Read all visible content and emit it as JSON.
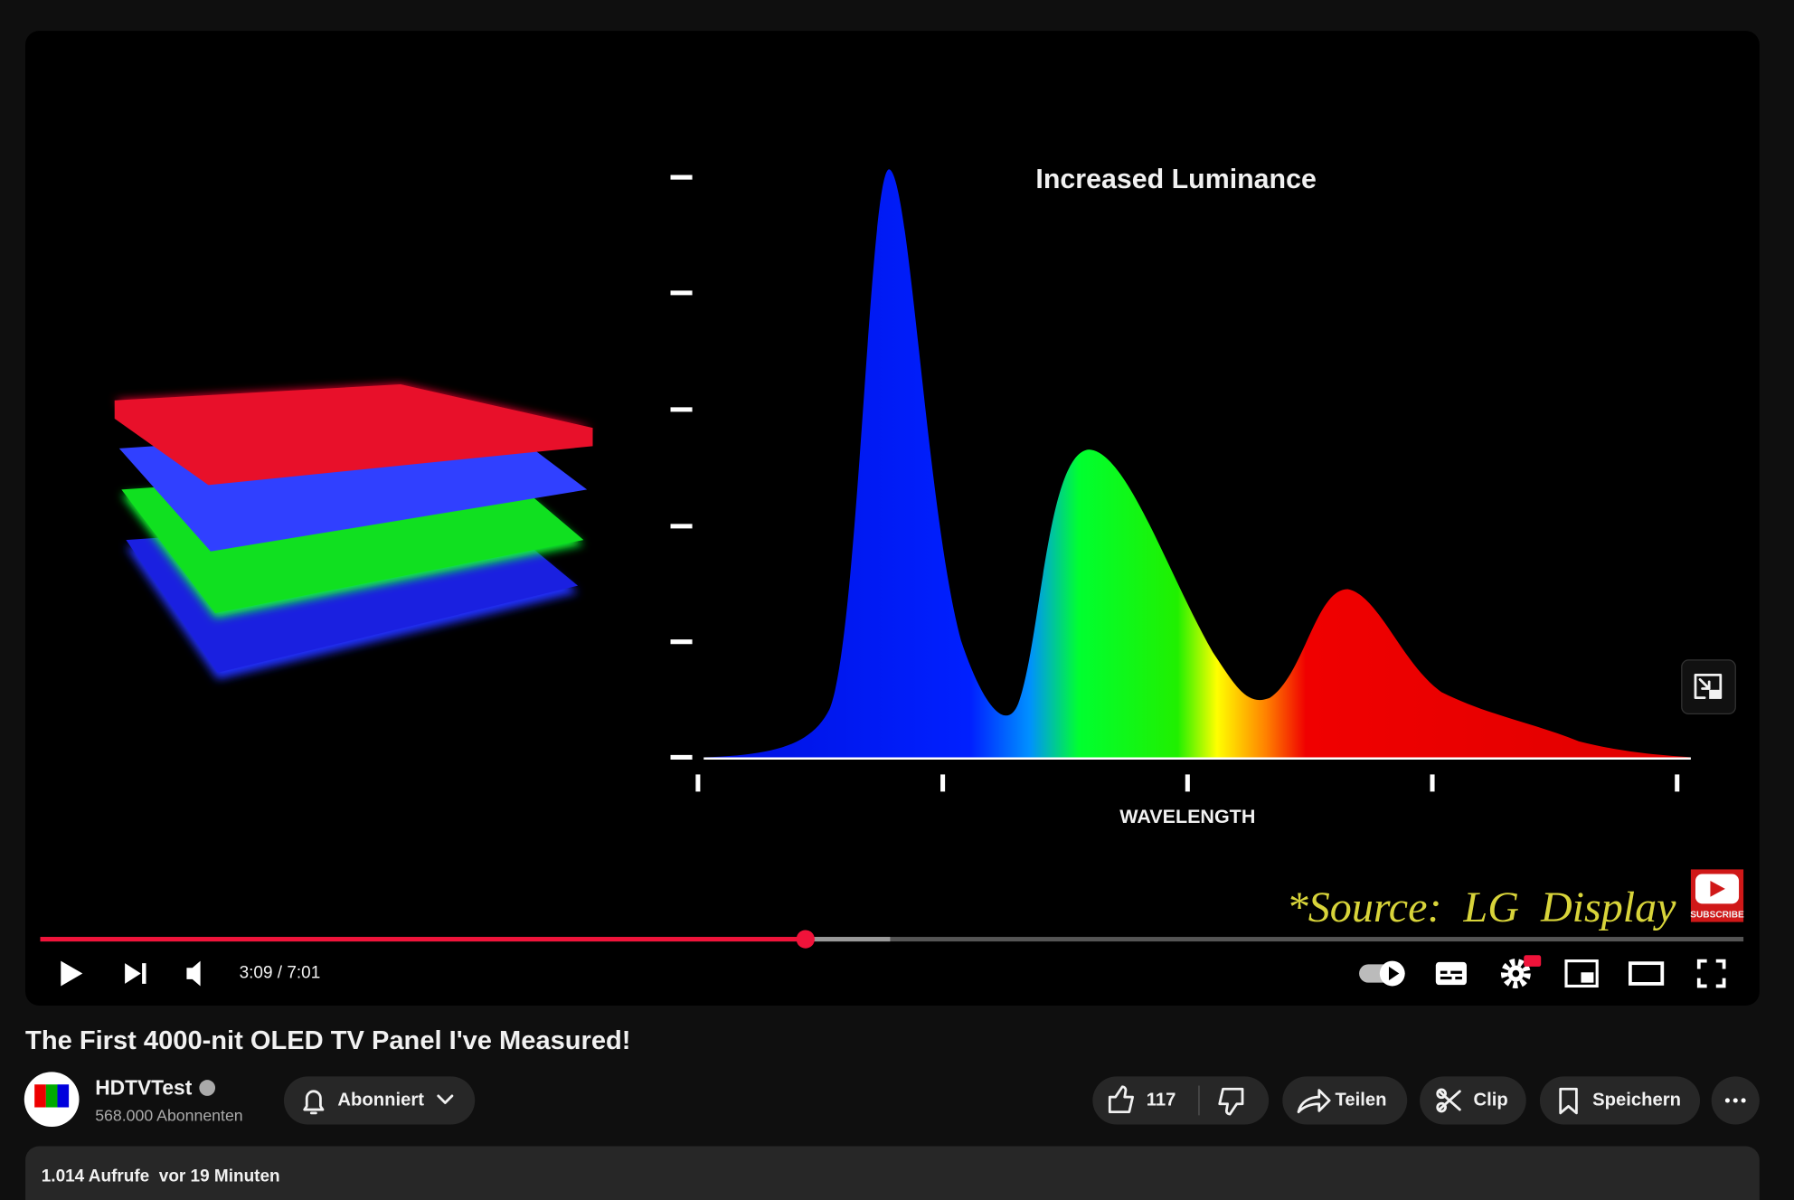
{
  "video": {
    "overlay_title": "Increased Luminance",
    "axis_label": "WAVELENGTH",
    "source": "*Source:  LG  Display",
    "badge": "SUBSCRIBE",
    "time": "3:09 / 7:01"
  },
  "title": "The First 4000-nit OLED TV Panel I've Measured!",
  "channel": {
    "name": "HDTVTest",
    "subscribers": "568.000 Abonnenten"
  },
  "buttons": {
    "subscribe": "Abonniert",
    "likes": 117,
    "share": "Teilen",
    "clip": "Clip",
    "save": "Speichern"
  },
  "description": {
    "meta": "1.014 Aufrufe  vor 19 Minuten"
  }
}
